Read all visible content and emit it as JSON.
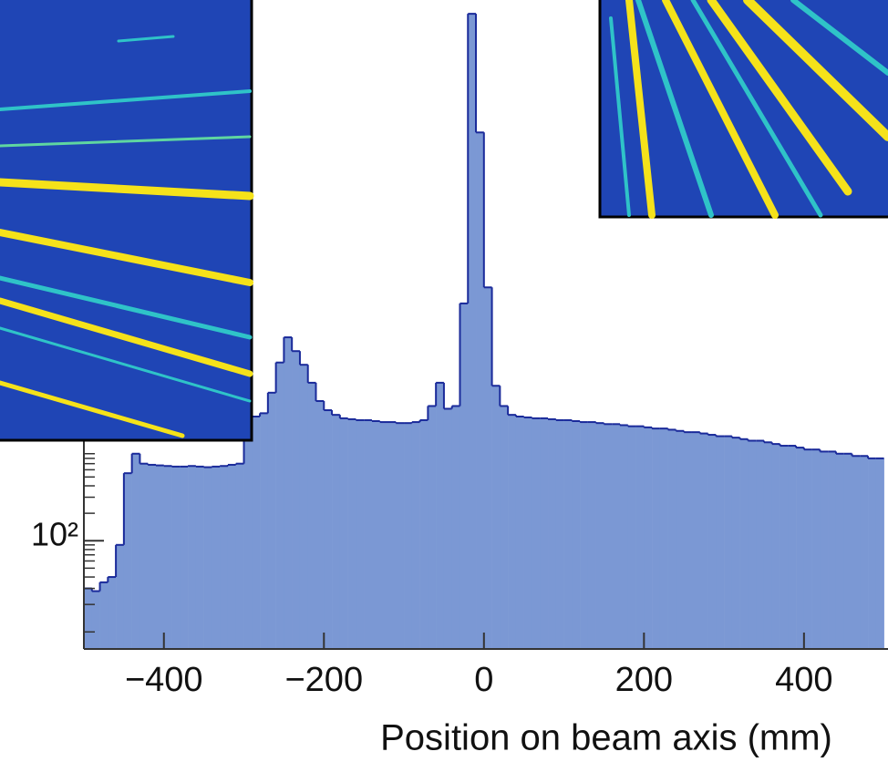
{
  "chart_data": {
    "type": "histogram",
    "log_y": true,
    "x_label": "Position on beam axis (mm)",
    "bins": [
      -500,
      -490,
      -480,
      -470,
      -460,
      -450,
      -440,
      -430,
      -420,
      -410,
      -400,
      -390,
      -380,
      -370,
      -360,
      -350,
      -340,
      -330,
      -320,
      -310,
      -300,
      -290,
      -280,
      -270,
      -260,
      -250,
      -240,
      -230,
      -220,
      -210,
      -200,
      -190,
      -180,
      -170,
      -160,
      -150,
      -140,
      -130,
      -120,
      -110,
      -100,
      -90,
      -80,
      -70,
      -60,
      -50,
      -40,
      -30,
      -20,
      -10,
      0,
      10,
      20,
      30,
      40,
      50,
      60,
      70,
      80,
      90,
      100,
      110,
      120,
      130,
      140,
      150,
      160,
      170,
      180,
      190,
      200,
      210,
      220,
      230,
      240,
      250,
      260,
      270,
      280,
      290,
      300,
      310,
      320,
      330,
      340,
      350,
      360,
      370,
      380,
      390,
      400,
      410,
      420,
      430,
      440,
      450,
      460,
      470,
      480,
      490,
      500
    ],
    "values": [
      30,
      28,
      35,
      40,
      90,
      550,
      900,
      700,
      680,
      670,
      660,
      650,
      650,
      660,
      650,
      640,
      650,
      660,
      680,
      700,
      1700,
      2300,
      2500,
      4200,
      9000,
      17000,
      12000,
      8500,
      5400,
      3400,
      2700,
      2400,
      2200,
      2150,
      2100,
      2100,
      2050,
      2000,
      2000,
      1950,
      1950,
      2000,
      2100,
      3000,
      5400,
      2800,
      3000,
      40000,
      60000000,
      3000000,
      60000,
      5000,
      3000,
      2400,
      2300,
      2250,
      2200,
      2200,
      2150,
      2100,
      2100,
      2050,
      2000,
      2000,
      1950,
      1900,
      1900,
      1850,
      1800,
      1800,
      1750,
      1700,
      1700,
      1650,
      1600,
      1550,
      1550,
      1500,
      1450,
      1400,
      1400,
      1350,
      1300,
      1250,
      1250,
      1200,
      1150,
      1100,
      1100,
      1050,
      1000,
      1000,
      950,
      950,
      900,
      900,
      850,
      850,
      800,
      800
    ],
    "fill_color": "#7b98d4",
    "line_color": "#1a2a9a",
    "xlim": [
      -500,
      505
    ],
    "xticks": [
      {
        "value": -400,
        "label": "−400"
      },
      {
        "value": -200,
        "label": "−200"
      },
      0,
      200,
      400
    ],
    "ylim": [
      6.5,
      85000000
    ],
    "yticks": [
      {
        "value": 100,
        "label": "10²"
      }
    ],
    "yminorticks": [
      10,
      20,
      30,
      40,
      50,
      60,
      70,
      80,
      90,
      200,
      300,
      400,
      500,
      600,
      700,
      800,
      900
    ]
  }
}
